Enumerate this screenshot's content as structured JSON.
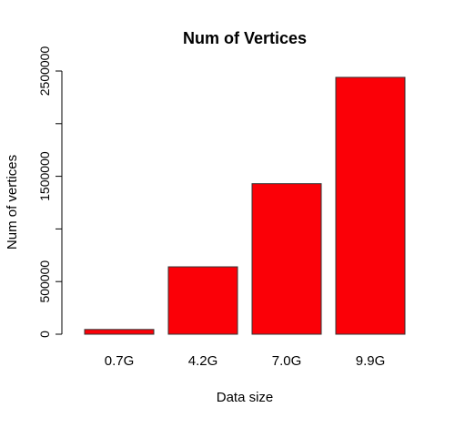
{
  "chart_data": {
    "type": "bar",
    "title": "Num of Vertices",
    "xlabel": "Data size",
    "ylabel": "Num of vertices",
    "categories": [
      "0.7G",
      "4.2G",
      "7.0G",
      "9.9G"
    ],
    "values": [
      45000,
      640000,
      1430000,
      2440000
    ],
    "ylim": [
      0,
      2600000
    ],
    "yticks": [
      0,
      500000,
      1000000,
      1500000,
      2000000,
      2500000
    ],
    "ytick_labels": [
      "0",
      "500000",
      "",
      "1500000",
      "",
      "2500000"
    ],
    "grid": false,
    "legend": "none",
    "colors": {
      "bar_fill": "#fb0007",
      "bar_stroke": "#333333",
      "axis": "#000000",
      "text": "#000000"
    }
  }
}
